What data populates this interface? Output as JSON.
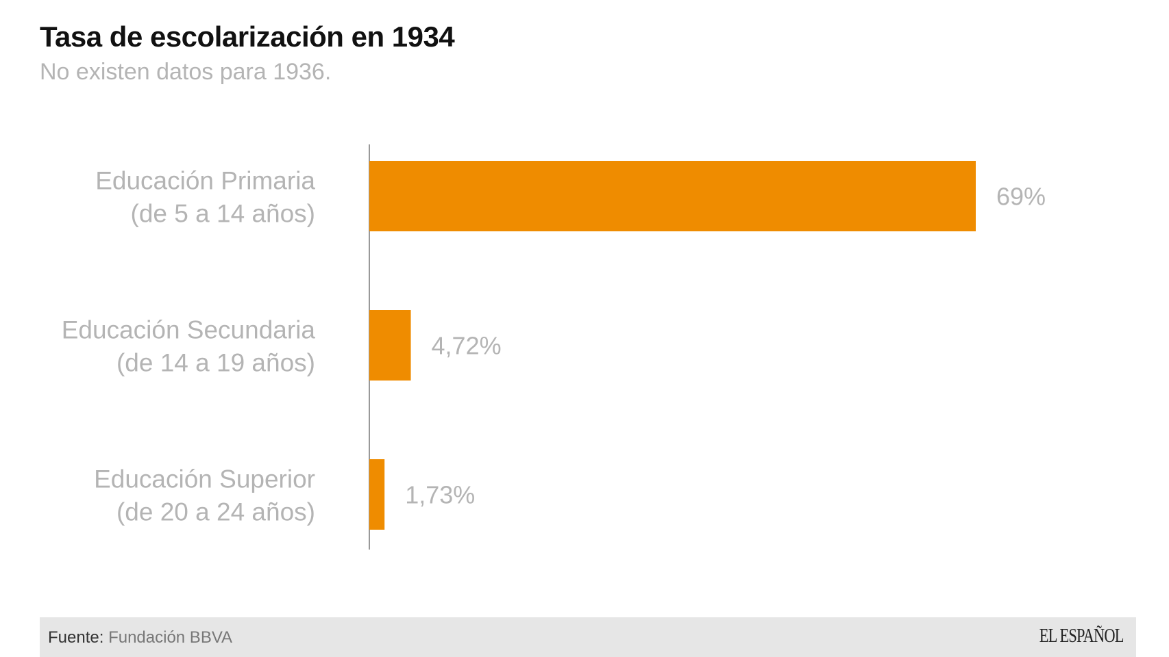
{
  "title": "Tasa de escolarización en 1934",
  "subtitle": "No existen datos para 1936.",
  "chart_data": {
    "type": "bar",
    "orientation": "horizontal",
    "title": "Tasa de escolarización en 1934",
    "subtitle": "No existen datos para 1936.",
    "categories": [
      [
        "Educación Primaria",
        "(de 5 a 14 años)"
      ],
      [
        "Educación Secundaria",
        "(de 14 a 19 años)"
      ],
      [
        "Educación Superior",
        "(de 20 a 24 años)"
      ]
    ],
    "values": [
      69,
      4.72,
      1.73
    ],
    "value_labels": [
      "69%",
      "4,72%",
      "1,73%"
    ],
    "xlabel": "",
    "ylabel": "",
    "xlim": [
      0,
      69
    ],
    "grid": false,
    "bar_color": "#ef8c00"
  },
  "footer": {
    "source_label": "Fuente:",
    "source_value": "Fundación BBVA",
    "logo": "EL ESPAÑOL"
  }
}
